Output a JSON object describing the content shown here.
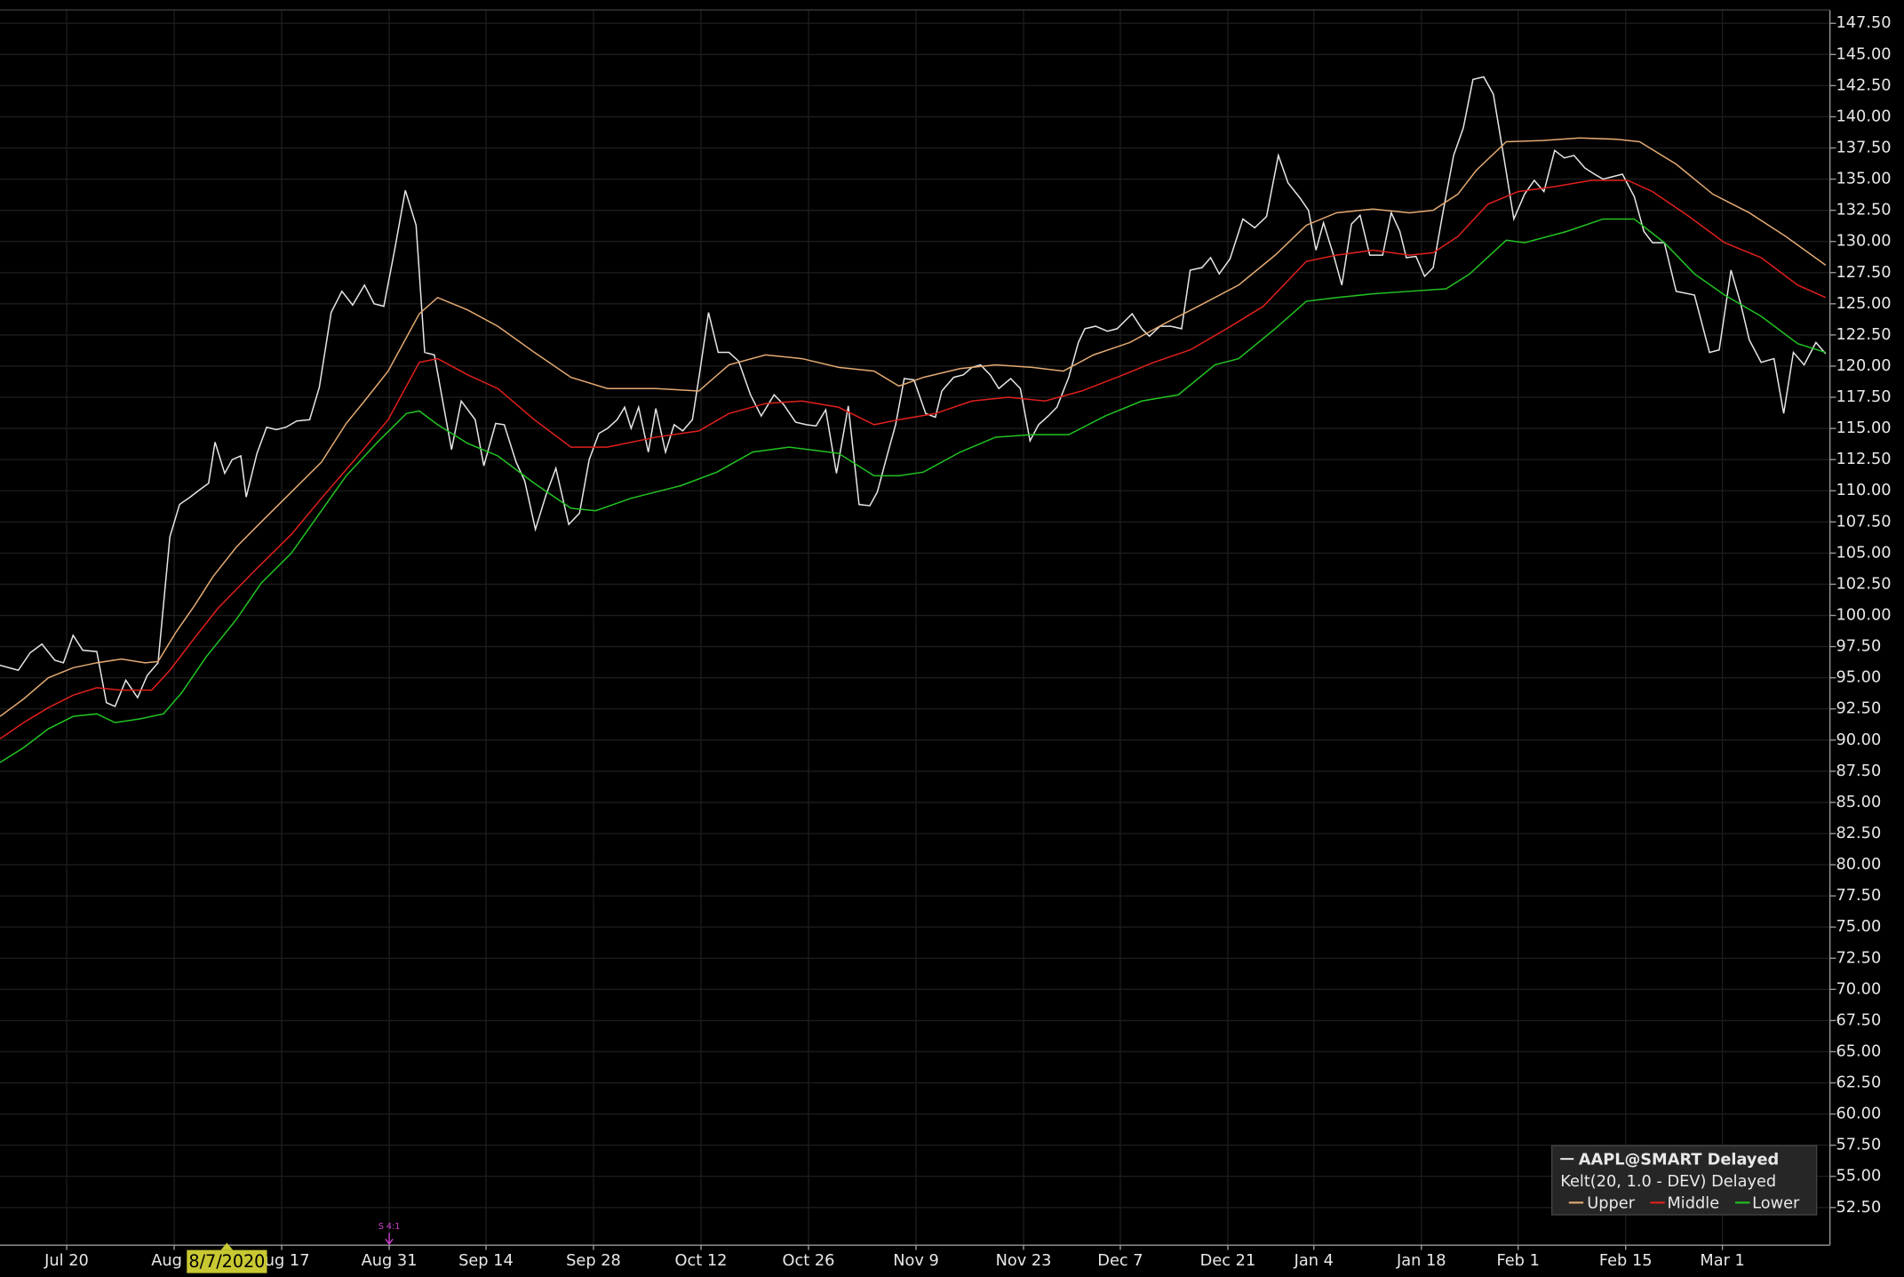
{
  "chart_data": {
    "type": "line",
    "xlim": [
      -6.2,
      164
    ],
    "ylim": [
      49.48,
      148.57
    ],
    "grid": true,
    "xticks": [
      {
        "value": 0,
        "label": "Jul 20"
      },
      {
        "value": 10,
        "label": "Aug 3"
      },
      {
        "value": 20,
        "label": "Aug 17"
      },
      {
        "value": 30,
        "label": "Aug 31"
      },
      {
        "value": 39,
        "label": "Sep 14"
      },
      {
        "value": 49,
        "label": "Sep 28"
      },
      {
        "value": 59,
        "label": "Oct 12"
      },
      {
        "value": 69,
        "label": "Oct 26"
      },
      {
        "value": 79,
        "label": "Nov 9"
      },
      {
        "value": 89,
        "label": "Nov 23"
      },
      {
        "value": 98,
        "label": "Dec 7"
      },
      {
        "value": 108,
        "label": "Dec 21"
      },
      {
        "value": 116,
        "label": "Jan 4"
      },
      {
        "value": 126,
        "label": "Jan 18"
      },
      {
        "value": 135,
        "label": "Feb 1"
      },
      {
        "value": 145,
        "label": "Feb 15"
      },
      {
        "value": 154,
        "label": "Mar 1"
      }
    ],
    "yticks": [
      {
        "value": 52.5,
        "label": "52.50"
      },
      {
        "value": 55,
        "label": "55.00"
      },
      {
        "value": 57.5,
        "label": "57.50"
      },
      {
        "value": 60,
        "label": "60.00"
      },
      {
        "value": 62.5,
        "label": "62.50"
      },
      {
        "value": 65,
        "label": "65.00"
      },
      {
        "value": 67.5,
        "label": "67.50"
      },
      {
        "value": 70,
        "label": "70.00"
      },
      {
        "value": 72.5,
        "label": "72.50"
      },
      {
        "value": 75,
        "label": "75.00"
      },
      {
        "value": 77.5,
        "label": "77.50"
      },
      {
        "value": 80,
        "label": "80.00"
      },
      {
        "value": 82.5,
        "label": "82.50"
      },
      {
        "value": 85,
        "label": "85.00"
      },
      {
        "value": 87.5,
        "label": "87.50"
      },
      {
        "value": 90,
        "label": "90.00"
      },
      {
        "value": 92.5,
        "label": "92.50"
      },
      {
        "value": 95,
        "label": "95.00"
      },
      {
        "value": 97.5,
        "label": "97.50"
      },
      {
        "value": 100,
        "label": "100.00"
      },
      {
        "value": 102.5,
        "label": "102.50"
      },
      {
        "value": 105,
        "label": "105.00"
      },
      {
        "value": 107.5,
        "label": "107.50"
      },
      {
        "value": 110,
        "label": "110.00"
      },
      {
        "value": 112.5,
        "label": "112.50"
      },
      {
        "value": 115,
        "label": "115.00"
      },
      {
        "value": 117.5,
        "label": "117.50"
      },
      {
        "value": 120,
        "label": "120.00"
      },
      {
        "value": 122.5,
        "label": "122.50"
      },
      {
        "value": 125,
        "label": "125.00"
      },
      {
        "value": 127.5,
        "label": "127.50"
      },
      {
        "value": 130,
        "label": "130.00"
      },
      {
        "value": 132.5,
        "label": "132.50"
      },
      {
        "value": 135,
        "label": "135.00"
      },
      {
        "value": 137.5,
        "label": "137.50"
      },
      {
        "value": 140,
        "label": "140.00"
      },
      {
        "value": 142.5,
        "label": "142.50"
      },
      {
        "value": 145,
        "label": "145.00"
      },
      {
        "value": 147.5,
        "label": "147.50"
      }
    ],
    "legend_group_title": "Kelt(20, 1.0 - DEV) Delayed",
    "cursor": {
      "x": 14,
      "label": "8/7/2020"
    },
    "annotations": [
      {
        "x": 30,
        "text": "S 4:1"
      }
    ],
    "series": [
      {
        "name": "AAPL@SMART Delayed",
        "color": "#e6e6e6",
        "x": [
          -6.2,
          -4.5,
          -3.4,
          -2.3,
          -1.1,
          -0.3,
          0.6,
          1.5,
          2.8,
          3.7,
          4.5,
          5.5,
          6.6,
          7.5,
          8.5,
          9.6,
          10.5,
          11.5,
          12.4,
          13.2,
          13.8,
          14.7,
          15.4,
          16.2,
          16.7,
          17.7,
          18.6,
          19.5,
          20.4,
          21.4,
          22.6,
          23.5,
          24.6,
          25.6,
          26.6,
          27.7,
          28.6,
          29.5,
          30.5,
          31.5,
          32.5,
          33.3,
          34.2,
          35.1,
          35.8,
          36.7,
          38.0,
          38.8,
          39.9,
          40.7,
          41.8,
          42.6,
          43.6,
          44.6,
          45.5,
          46.7,
          47.7,
          48.6,
          49.5,
          50.3,
          51.2,
          51.9,
          52.5,
          53.2,
          54.1,
          54.8,
          55.7,
          56.5,
          57.3,
          58.2,
          58.9,
          59.7,
          60.6,
          61.6,
          62.5,
          63.6,
          64.6,
          65.8,
          66.7,
          67.8,
          68.8,
          69.7,
          70.6,
          71.6,
          72.7,
          73.7,
          74.7,
          75.4,
          76.3,
          77.1,
          77.9,
          78.8,
          79.9,
          80.8,
          81.4,
          82.5,
          83.4,
          84.2,
          85.0,
          85.9,
          86.7,
          87.8,
          88.7,
          89.6,
          90.4,
          91.3,
          92.1,
          93.2,
          94.1,
          94.7,
          95.7,
          96.8,
          97.7,
          99.1,
          100.0,
          100.7,
          101.7,
          102.7,
          103.7,
          104.5,
          105.6,
          106.4,
          107.2,
          108.2,
          109.4,
          110.5,
          111.6,
          112.7,
          113.6,
          114.7,
          115.5,
          116.2,
          116.9,
          117.9,
          118.6,
          119.5,
          120.3,
          121.2,
          122.4,
          123.2,
          124.0,
          124.6,
          125.5,
          126.3,
          127.1,
          128.0,
          129.0,
          129.9,
          130.8,
          131.8,
          132.7,
          133.7,
          134.6,
          135.6,
          136.5,
          137.4,
          138.4,
          139.3,
          140.2,
          141.2,
          142.1,
          142.9,
          143.8,
          144.7,
          145.8,
          146.7,
          147.5,
          148.6,
          149.7,
          151.4,
          152.8,
          153.7,
          154.8,
          155.7,
          156.5,
          157.6,
          158.8,
          159.7,
          160.6,
          161.6,
          162.7,
          163.6
        ],
        "values": [
          96.0,
          95.6,
          97.0,
          97.7,
          96.4,
          96.2,
          98.4,
          97.2,
          97.1,
          93.0,
          92.7,
          94.8,
          93.4,
          95.2,
          96.2,
          106.3,
          108.9,
          109.5,
          110.1,
          110.6,
          113.9,
          111.4,
          112.5,
          112.8,
          109.5,
          113.0,
          115.1,
          114.9,
          115.1,
          115.6,
          115.7,
          118.3,
          124.3,
          126.0,
          124.9,
          126.5,
          125.0,
          124.8,
          129.3,
          134.1,
          131.3,
          121.1,
          120.9,
          116.6,
          113.3,
          117.2,
          115.7,
          112.0,
          115.4,
          115.3,
          112.3,
          110.8,
          106.9,
          109.7,
          111.8,
          107.3,
          108.2,
          112.5,
          114.6,
          115.0,
          115.7,
          116.7,
          115.0,
          116.7,
          113.1,
          116.6,
          113.1,
          115.3,
          114.8,
          115.7,
          119.6,
          124.3,
          121.1,
          121.1,
          120.4,
          117.7,
          116.0,
          117.7,
          116.9,
          115.5,
          115.3,
          115.2,
          116.5,
          111.4,
          116.8,
          108.9,
          108.8,
          109.9,
          112.8,
          115.3,
          119.0,
          118.9,
          116.2,
          115.9,
          118.0,
          119.1,
          119.3,
          119.9,
          120.1,
          119.3,
          118.2,
          119.0,
          118.2,
          114.0,
          115.3,
          116.0,
          116.7,
          119.1,
          121.9,
          123.0,
          123.2,
          122.8,
          123.0,
          124.2,
          123.0,
          122.4,
          123.2,
          123.2,
          123.0,
          127.7,
          127.9,
          128.7,
          127.4,
          128.6,
          131.8,
          131.1,
          132.0,
          136.9,
          134.7,
          133.5,
          132.5,
          129.3,
          131.5,
          128.7,
          126.5,
          131.4,
          132.1,
          128.9,
          128.9,
          132.3,
          130.8,
          128.7,
          128.8,
          127.2,
          127.9,
          132.3,
          136.9,
          139.1,
          143.0,
          143.2,
          141.8,
          136.6,
          131.8,
          133.8,
          134.9,
          134.0,
          137.3,
          136.7,
          136.9,
          135.9,
          135.4,
          135.0,
          135.2,
          135.4,
          133.6,
          130.8,
          129.9,
          129.9,
          126.0,
          125.7,
          121.1,
          121.3,
          127.7,
          125.0,
          122.1,
          120.3,
          120.6,
          116.2,
          121.1,
          120.1,
          121.9,
          121.0
        ]
      },
      {
        "name": "Upper",
        "color": "#e3aa72",
        "x": [
          -6.2,
          -4.0,
          -1.7,
          0.6,
          2.8,
          5.1,
          7.3,
          8.5,
          10.2,
          11.9,
          13.6,
          15.8,
          18.1,
          20.9,
          23.7,
          26.0,
          27.7,
          29.9,
          32.8,
          34.5,
          37.3,
          40.1,
          43.5,
          46.9,
          50.3,
          54.8,
          58.8,
          61.6,
          65.0,
          68.4,
          71.8,
          75.1,
          77.4,
          79.7,
          83.1,
          86.4,
          89.8,
          92.7,
          95.5,
          98.9,
          102.3,
          105.7,
          109.0,
          112.4,
          115.3,
          118.1,
          121.5,
          124.9,
          127.1,
          129.4,
          131.1,
          133.9,
          137.3,
          140.7,
          144.1,
          146.3,
          149.7,
          153.1,
          156.5,
          159.9,
          163.6
        ],
        "values": [
          91.9,
          93.3,
          95.0,
          95.8,
          96.2,
          96.5,
          96.2,
          96.3,
          98.7,
          100.8,
          103.1,
          105.5,
          107.5,
          109.9,
          112.3,
          115.4,
          117.2,
          119.6,
          124.2,
          125.5,
          124.5,
          123.2,
          121.1,
          119.1,
          118.2,
          118.2,
          118.0,
          120.1,
          120.9,
          120.6,
          119.9,
          119.6,
          118.4,
          119.1,
          119.8,
          120.1,
          119.9,
          119.6,
          120.9,
          121.9,
          123.5,
          125.0,
          126.5,
          128.9,
          131.3,
          132.3,
          132.6,
          132.3,
          132.5,
          133.8,
          135.7,
          138.0,
          138.1,
          138.3,
          138.2,
          138.0,
          136.2,
          133.8,
          132.3,
          130.4,
          128.1
        ]
      },
      {
        "name": "Middle",
        "color": "#e0201c",
        "x": [
          -6.2,
          -4.0,
          -1.7,
          0.6,
          2.8,
          5.1,
          7.9,
          9.6,
          11.9,
          14.1,
          17.5,
          20.9,
          23.7,
          26.6,
          29.9,
          32.8,
          34.5,
          37.3,
          40.1,
          43.5,
          46.9,
          50.3,
          54.8,
          58.8,
          61.6,
          65.0,
          68.4,
          71.8,
          75.1,
          77.4,
          80.8,
          84.2,
          87.6,
          91.0,
          94.4,
          97.7,
          101.1,
          104.5,
          107.9,
          111.3,
          115.3,
          118.1,
          121.5,
          124.9,
          127.1,
          129.4,
          132.2,
          135.0,
          138.4,
          141.8,
          145.2,
          147.5,
          150.9,
          154.2,
          157.6,
          161.0,
          163.6
        ],
        "values": [
          90.1,
          91.4,
          92.6,
          93.6,
          94.2,
          94.0,
          94.0,
          95.6,
          98.2,
          100.6,
          103.6,
          106.5,
          109.4,
          112.3,
          115.7,
          120.3,
          120.6,
          119.3,
          118.2,
          115.7,
          113.5,
          113.5,
          114.3,
          114.8,
          116.2,
          117.0,
          117.2,
          116.7,
          115.3,
          115.7,
          116.2,
          117.2,
          117.5,
          117.2,
          118.0,
          119.1,
          120.3,
          121.3,
          123.0,
          124.8,
          128.4,
          128.9,
          129.3,
          128.9,
          129.1,
          130.4,
          133.0,
          134.0,
          134.4,
          134.9,
          134.9,
          134.0,
          132.0,
          129.9,
          128.7,
          126.5,
          125.5
        ]
      },
      {
        "name": "Lower",
        "color": "#22c422",
        "x": [
          -6.2,
          -4.0,
          -1.7,
          0.6,
          2.8,
          4.5,
          6.8,
          9.0,
          10.7,
          13.0,
          15.8,
          18.1,
          20.9,
          23.7,
          26.0,
          28.8,
          31.6,
          32.8,
          34.5,
          37.3,
          40.1,
          43.5,
          46.9,
          49.2,
          52.5,
          57.1,
          60.5,
          63.8,
          67.2,
          71.8,
          75.1,
          77.4,
          79.7,
          83.1,
          86.4,
          89.8,
          93.2,
          96.6,
          100.0,
          103.4,
          106.8,
          109.0,
          112.4,
          115.3,
          118.1,
          121.5,
          124.9,
          128.3,
          130.5,
          133.9,
          135.6,
          139.5,
          142.9,
          145.8,
          148.6,
          151.4,
          154.2,
          157.6,
          161.0,
          163.6
        ],
        "values": [
          88.2,
          89.4,
          90.9,
          91.9,
          92.1,
          91.4,
          91.7,
          92.1,
          93.8,
          96.7,
          99.7,
          102.6,
          105.0,
          108.4,
          111.2,
          113.8,
          116.2,
          116.4,
          115.3,
          113.8,
          112.8,
          110.6,
          108.6,
          108.4,
          109.4,
          110.4,
          111.5,
          113.1,
          113.5,
          113.0,
          111.2,
          111.2,
          111.5,
          113.1,
          114.3,
          114.5,
          114.5,
          116.0,
          117.2,
          117.7,
          120.1,
          120.6,
          123.0,
          125.2,
          125.5,
          125.8,
          126.0,
          126.2,
          127.4,
          130.1,
          129.9,
          130.8,
          131.8,
          131.8,
          129.9,
          127.4,
          125.7,
          124.0,
          121.8,
          121.1
        ]
      }
    ]
  }
}
